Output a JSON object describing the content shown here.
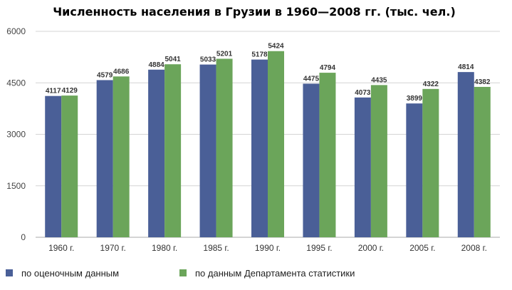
{
  "chart_data": {
    "type": "bar",
    "title": "Численность населения в Грузии в 1960—2008 гг. (тыс. чел.)",
    "categories": [
      "1960 г.",
      "1970 г.",
      "1980 г.",
      "1985 г.",
      "1990 г.",
      "1995 г.",
      "2000 г.",
      "2005 г.",
      "2008 г."
    ],
    "series": [
      {
        "name": "по оценочным данным",
        "color": "#4a5f97",
        "values": [
          4117,
          4579,
          4884,
          5033,
          5178,
          4475,
          4073,
          3899,
          4814
        ],
        "labels": [
          "4117",
          "4579",
          "4884",
          "5033",
          "5178",
          "4475",
          "4073",
          "3899",
          "4814"
        ]
      },
      {
        "name": "по данным Департамента статистики",
        "color": "#6ba55a",
        "values": [
          4129,
          4686,
          5041,
          5201,
          5424,
          4794,
          4435,
          4322,
          4382
        ],
        "labels": [
          "4129",
          "4686",
          "5041",
          "5201",
          "5424",
          "4794",
          "4435",
          "4322",
          "4382"
        ]
      }
    ],
    "ylim": [
      0,
      6000
    ],
    "yticks": [
      0,
      1500,
      3000,
      4500,
      6000
    ],
    "ytick_labels": [
      "0",
      "1500",
      "3000",
      "4500",
      "6000"
    ],
    "grid": true,
    "legend_position": "bottom"
  }
}
